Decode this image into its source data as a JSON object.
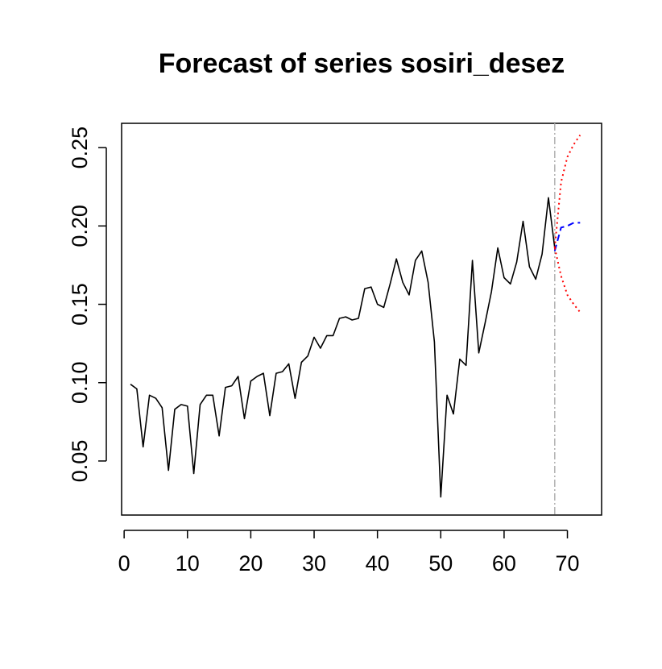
{
  "chart_data": {
    "type": "line",
    "title": "Forecast of series sosiri_desez",
    "xlabel": "",
    "ylabel": "",
    "xlim": [
      -0.4,
      75.4
    ],
    "ylim": [
      0.0155,
      0.2655
    ],
    "x_ticks": [
      0,
      10,
      20,
      30,
      40,
      50,
      60,
      70
    ],
    "y_ticks": [
      0.05,
      0.1,
      0.15,
      0.2,
      0.25
    ],
    "x_tick_labels": [
      "0",
      "10",
      "20",
      "30",
      "40",
      "50",
      "60",
      "70"
    ],
    "y_tick_labels": [
      "0.05",
      "0.10",
      "0.15",
      "0.20",
      "0.25"
    ],
    "grid": false,
    "legend": "none",
    "forecast_origin": 68,
    "series": [
      {
        "role": "observed",
        "color": "#000000",
        "x": [
          1,
          2,
          3,
          4,
          5,
          6,
          7,
          8,
          9,
          10,
          11,
          12,
          13,
          14,
          15,
          16,
          17,
          18,
          19,
          20,
          21,
          22,
          23,
          24,
          25,
          26,
          27,
          28,
          29,
          30,
          31,
          32,
          33,
          34,
          35,
          36,
          37,
          38,
          39,
          40,
          41,
          42,
          43,
          44,
          45,
          46,
          47,
          48,
          49,
          50,
          51,
          52,
          53,
          54,
          55,
          56,
          57,
          58,
          59,
          60,
          61,
          62,
          63,
          64,
          65,
          66,
          67,
          68
        ],
        "values": [
          0.099,
          0.096,
          0.059,
          0.092,
          0.09,
          0.084,
          0.044,
          0.083,
          0.086,
          0.085,
          0.042,
          0.086,
          0.092,
          0.092,
          0.066,
          0.097,
          0.098,
          0.104,
          0.077,
          0.101,
          0.104,
          0.106,
          0.079,
          0.106,
          0.107,
          0.112,
          0.09,
          0.113,
          0.117,
          0.129,
          0.122,
          0.13,
          0.13,
          0.141,
          0.142,
          0.14,
          0.141,
          0.16,
          0.161,
          0.15,
          0.148,
          0.163,
          0.179,
          0.164,
          0.156,
          0.178,
          0.184,
          0.164,
          0.126,
          0.027,
          0.092,
          0.08,
          0.115,
          0.111,
          0.178,
          0.119,
          0.138,
          0.158,
          0.186,
          0.167,
          0.163,
          0.177,
          0.203,
          0.174,
          0.166,
          0.182,
          0.218,
          0.186
        ]
      },
      {
        "role": "forecast",
        "color": "#0000ff",
        "dash": "dashed",
        "x": [
          68,
          69,
          70,
          71,
          72
        ],
        "values": [
          0.184,
          0.199,
          0.2,
          0.202,
          0.202
        ]
      },
      {
        "role": "upper-bound",
        "color": "#ff0000",
        "dash": "dotted",
        "x": [
          68,
          69,
          70,
          71,
          72
        ],
        "values": [
          0.186,
          0.228,
          0.244,
          0.252,
          0.258
        ]
      },
      {
        "role": "lower-bound",
        "color": "#ff0000",
        "dash": "dotted",
        "x": [
          68,
          69,
          70,
          71,
          72
        ],
        "values": [
          0.186,
          0.168,
          0.156,
          0.15,
          0.145
        ]
      }
    ]
  }
}
